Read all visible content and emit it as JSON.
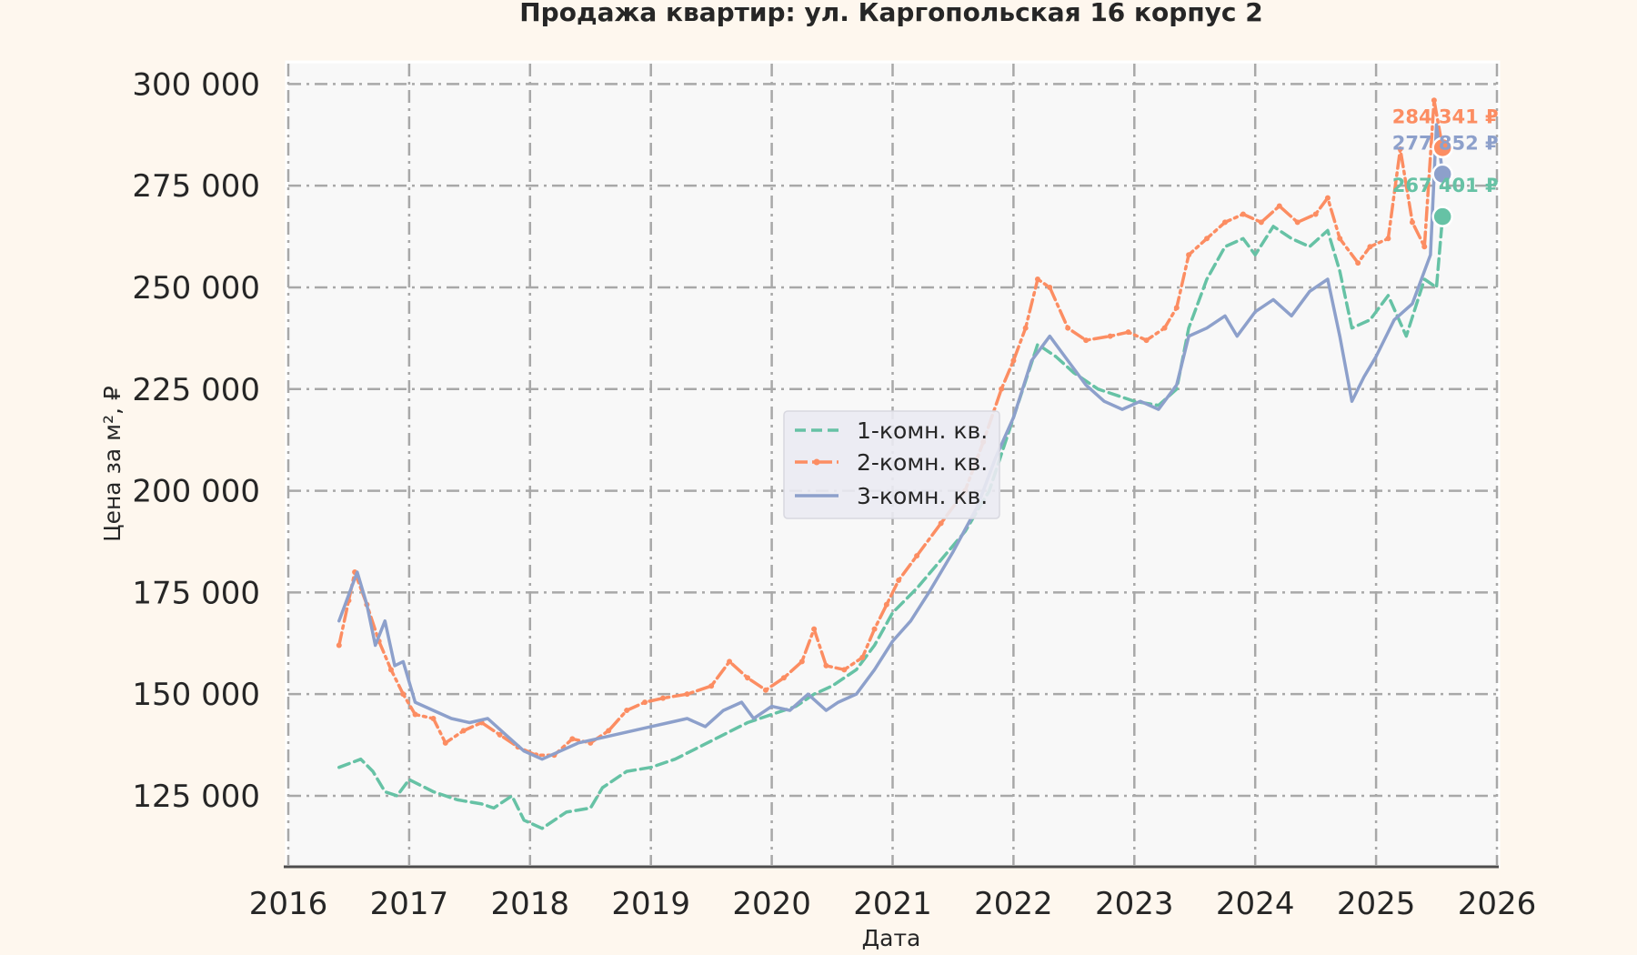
{
  "chart_data": {
    "type": "line",
    "title": "Продажа квартир: ул. Каргопольская 16 корпус 2",
    "xlabel": "Дата",
    "ylabel": "Цена за м², ₽",
    "xlim": [
      2016,
      2026
    ],
    "ylim": [
      108000,
      305000
    ],
    "x_ticks": [
      "2016",
      "2017",
      "2018",
      "2019",
      "2020",
      "2021",
      "2022",
      "2023",
      "2024",
      "2025",
      "2026"
    ],
    "y_ticks": [
      {
        "value": 125000,
        "label": "125 000"
      },
      {
        "value": 150000,
        "label": "150 000"
      },
      {
        "value": 175000,
        "label": "175 000"
      },
      {
        "value": 200000,
        "label": "200 000"
      },
      {
        "value": 225000,
        "label": "225 000"
      },
      {
        "value": 250000,
        "label": "250 000"
      },
      {
        "value": 275000,
        "label": "275 000"
      },
      {
        "value": 300000,
        "label": "300 000"
      }
    ],
    "grid": true,
    "legend_position": "center",
    "series": [
      {
        "name": "1-комн. кв.",
        "color": "#66c2a5",
        "style": "dashed",
        "points": [
          [
            2016.42,
            132000
          ],
          [
            2016.6,
            134000
          ],
          [
            2016.7,
            131000
          ],
          [
            2016.8,
            126000
          ],
          [
            2016.9,
            125000
          ],
          [
            2017.0,
            129000
          ],
          [
            2017.2,
            126000
          ],
          [
            2017.4,
            124000
          ],
          [
            2017.6,
            123000
          ],
          [
            2017.7,
            122000
          ],
          [
            2017.85,
            125000
          ],
          [
            2017.95,
            119000
          ],
          [
            2018.1,
            117000
          ],
          [
            2018.3,
            121000
          ],
          [
            2018.5,
            122000
          ],
          [
            2018.6,
            127000
          ],
          [
            2018.8,
            131000
          ],
          [
            2019.0,
            132000
          ],
          [
            2019.2,
            134000
          ],
          [
            2019.4,
            137000
          ],
          [
            2019.6,
            140000
          ],
          [
            2019.8,
            143000
          ],
          [
            2020.0,
            145000
          ],
          [
            2020.2,
            147000
          ],
          [
            2020.35,
            150000
          ],
          [
            2020.5,
            152000
          ],
          [
            2020.7,
            156000
          ],
          [
            2020.85,
            162000
          ],
          [
            2021.0,
            170000
          ],
          [
            2021.2,
            176000
          ],
          [
            2021.4,
            183000
          ],
          [
            2021.6,
            190000
          ],
          [
            2021.8,
            200000
          ],
          [
            2022.0,
            218000
          ],
          [
            2022.2,
            236000
          ],
          [
            2022.35,
            233000
          ],
          [
            2022.5,
            229000
          ],
          [
            2022.7,
            225000
          ],
          [
            2022.9,
            223000
          ],
          [
            2023.0,
            222000
          ],
          [
            2023.2,
            221000
          ],
          [
            2023.35,
            225000
          ],
          [
            2023.45,
            240000
          ],
          [
            2023.6,
            252000
          ],
          [
            2023.75,
            260000
          ],
          [
            2023.9,
            262000
          ],
          [
            2024.0,
            258000
          ],
          [
            2024.15,
            265000
          ],
          [
            2024.3,
            262000
          ],
          [
            2024.45,
            260000
          ],
          [
            2024.6,
            264000
          ],
          [
            2024.7,
            254000
          ],
          [
            2024.8,
            240000
          ],
          [
            2024.95,
            242000
          ],
          [
            2025.1,
            248000
          ],
          [
            2025.25,
            238000
          ],
          [
            2025.4,
            252000
          ],
          [
            2025.5,
            250000
          ],
          [
            2025.55,
            267401
          ]
        ]
      },
      {
        "name": "2-комн. кв.",
        "color": "#fc8d62",
        "style": "dashdot",
        "points": [
          [
            2016.42,
            162000
          ],
          [
            2016.5,
            173000
          ],
          [
            2016.55,
            180000
          ],
          [
            2016.65,
            172000
          ],
          [
            2016.75,
            163000
          ],
          [
            2016.85,
            156000
          ],
          [
            2016.95,
            150000
          ],
          [
            2017.05,
            145000
          ],
          [
            2017.2,
            144000
          ],
          [
            2017.3,
            138000
          ],
          [
            2017.45,
            141000
          ],
          [
            2017.6,
            143000
          ],
          [
            2017.75,
            140000
          ],
          [
            2017.9,
            137000
          ],
          [
            2018.05,
            135000
          ],
          [
            2018.2,
            135000
          ],
          [
            2018.35,
            139000
          ],
          [
            2018.5,
            138000
          ],
          [
            2018.65,
            141000
          ],
          [
            2018.8,
            146000
          ],
          [
            2018.95,
            148000
          ],
          [
            2019.1,
            149000
          ],
          [
            2019.3,
            150000
          ],
          [
            2019.5,
            152000
          ],
          [
            2019.65,
            158000
          ],
          [
            2019.8,
            154000
          ],
          [
            2019.95,
            151000
          ],
          [
            2020.1,
            154000
          ],
          [
            2020.25,
            158000
          ],
          [
            2020.35,
            166000
          ],
          [
            2020.45,
            157000
          ],
          [
            2020.6,
            156000
          ],
          [
            2020.75,
            159000
          ],
          [
            2020.85,
            166000
          ],
          [
            2020.95,
            172000
          ],
          [
            2021.05,
            178000
          ],
          [
            2021.2,
            184000
          ],
          [
            2021.4,
            192000
          ],
          [
            2021.6,
            200000
          ],
          [
            2021.75,
            212000
          ],
          [
            2021.9,
            225000
          ],
          [
            2022.0,
            232000
          ],
          [
            2022.1,
            240000
          ],
          [
            2022.2,
            252000
          ],
          [
            2022.3,
            250000
          ],
          [
            2022.45,
            240000
          ],
          [
            2022.6,
            237000
          ],
          [
            2022.8,
            238000
          ],
          [
            2022.95,
            239000
          ],
          [
            2023.1,
            237000
          ],
          [
            2023.25,
            240000
          ],
          [
            2023.35,
            245000
          ],
          [
            2023.45,
            258000
          ],
          [
            2023.6,
            262000
          ],
          [
            2023.75,
            266000
          ],
          [
            2023.9,
            268000
          ],
          [
            2024.05,
            266000
          ],
          [
            2024.2,
            270000
          ],
          [
            2024.35,
            266000
          ],
          [
            2024.5,
            268000
          ],
          [
            2024.6,
            272000
          ],
          [
            2024.7,
            262000
          ],
          [
            2024.85,
            256000
          ],
          [
            2024.95,
            260000
          ],
          [
            2025.1,
            262000
          ],
          [
            2025.2,
            284000
          ],
          [
            2025.3,
            266000
          ],
          [
            2025.4,
            260000
          ],
          [
            2025.48,
            296000
          ],
          [
            2025.55,
            284341
          ]
        ]
      },
      {
        "name": "3-комн. кв.",
        "color": "#8da0cb",
        "style": "solid",
        "points": [
          [
            2016.42,
            168000
          ],
          [
            2016.52,
            176000
          ],
          [
            2016.57,
            180000
          ],
          [
            2016.65,
            172000
          ],
          [
            2016.72,
            162000
          ],
          [
            2016.8,
            168000
          ],
          [
            2016.88,
            157000
          ],
          [
            2016.95,
            158000
          ],
          [
            2017.05,
            148000
          ],
          [
            2017.2,
            146000
          ],
          [
            2017.35,
            144000
          ],
          [
            2017.5,
            143000
          ],
          [
            2017.65,
            144000
          ],
          [
            2017.8,
            140000
          ],
          [
            2017.95,
            136000
          ],
          [
            2018.1,
            134000
          ],
          [
            2018.25,
            136000
          ],
          [
            2018.4,
            138000
          ],
          [
            2018.55,
            139000
          ],
          [
            2018.7,
            140000
          ],
          [
            2018.85,
            141000
          ],
          [
            2019.0,
            142000
          ],
          [
            2019.15,
            143000
          ],
          [
            2019.3,
            144000
          ],
          [
            2019.45,
            142000
          ],
          [
            2019.6,
            146000
          ],
          [
            2019.75,
            148000
          ],
          [
            2019.85,
            144000
          ],
          [
            2020.0,
            147000
          ],
          [
            2020.15,
            146000
          ],
          [
            2020.3,
            150000
          ],
          [
            2020.45,
            146000
          ],
          [
            2020.55,
            148000
          ],
          [
            2020.7,
            150000
          ],
          [
            2020.85,
            156000
          ],
          [
            2021.0,
            163000
          ],
          [
            2021.15,
            168000
          ],
          [
            2021.3,
            175000
          ],
          [
            2021.5,
            185000
          ],
          [
            2021.7,
            196000
          ],
          [
            2021.85,
            208000
          ],
          [
            2022.0,
            218000
          ],
          [
            2022.15,
            232000
          ],
          [
            2022.3,
            238000
          ],
          [
            2022.45,
            232000
          ],
          [
            2022.6,
            226000
          ],
          [
            2022.75,
            222000
          ],
          [
            2022.9,
            220000
          ],
          [
            2023.05,
            222000
          ],
          [
            2023.2,
            220000
          ],
          [
            2023.35,
            226000
          ],
          [
            2023.45,
            238000
          ],
          [
            2023.6,
            240000
          ],
          [
            2023.75,
            243000
          ],
          [
            2023.85,
            238000
          ],
          [
            2024.0,
            244000
          ],
          [
            2024.15,
            247000
          ],
          [
            2024.3,
            243000
          ],
          [
            2024.45,
            249000
          ],
          [
            2024.6,
            252000
          ],
          [
            2024.7,
            238000
          ],
          [
            2024.8,
            222000
          ],
          [
            2024.9,
            228000
          ],
          [
            2025.0,
            233000
          ],
          [
            2025.15,
            242000
          ],
          [
            2025.3,
            246000
          ],
          [
            2025.45,
            258000
          ],
          [
            2025.5,
            290000
          ],
          [
            2025.55,
            277852
          ]
        ]
      }
    ],
    "end_labels": [
      {
        "series": "2-комн. кв.",
        "x": 2025.55,
        "value": 284341,
        "label": "284 341 ₽"
      },
      {
        "series": "3-комн. кв.",
        "x": 2025.55,
        "value": 277852,
        "label": "277 852 ₽"
      },
      {
        "series": "1-комн. кв.",
        "x": 2025.55,
        "value": 267401,
        "label": "267 401 ₽"
      }
    ]
  }
}
